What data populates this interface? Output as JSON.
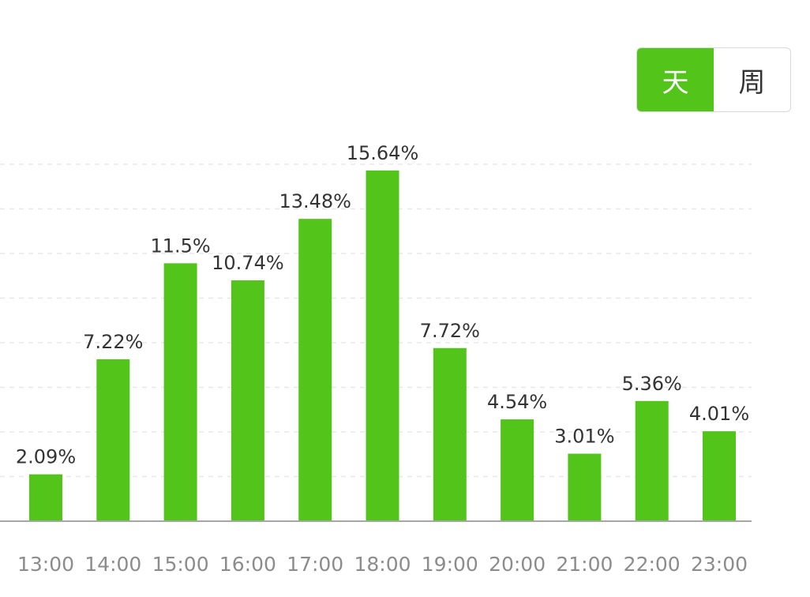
{
  "toggle": {
    "options": [
      "天",
      "周"
    ],
    "selected": "天",
    "active_color": "#52c41a"
  },
  "chart_data": {
    "type": "bar",
    "categories": [
      "13:00",
      "14:00",
      "15:00",
      "16:00",
      "17:00",
      "18:00",
      "19:00",
      "20:00",
      "21:00",
      "22:00",
      "23:00"
    ],
    "values": [
      2.09,
      7.22,
      11.5,
      10.74,
      13.48,
      15.64,
      7.72,
      4.54,
      3.01,
      5.36,
      4.01
    ],
    "value_labels": [
      "2.09%",
      "7.22%",
      "11.5%",
      "10.74%",
      "13.48%",
      "15.64%",
      "7.72%",
      "4.54%",
      "3.01%",
      "5.36%",
      "4.01%"
    ],
    "bar_color": "#52c41a",
    "ylim": [
      0,
      18
    ],
    "grid": true,
    "title": "",
    "xlabel": "",
    "ylabel": ""
  }
}
